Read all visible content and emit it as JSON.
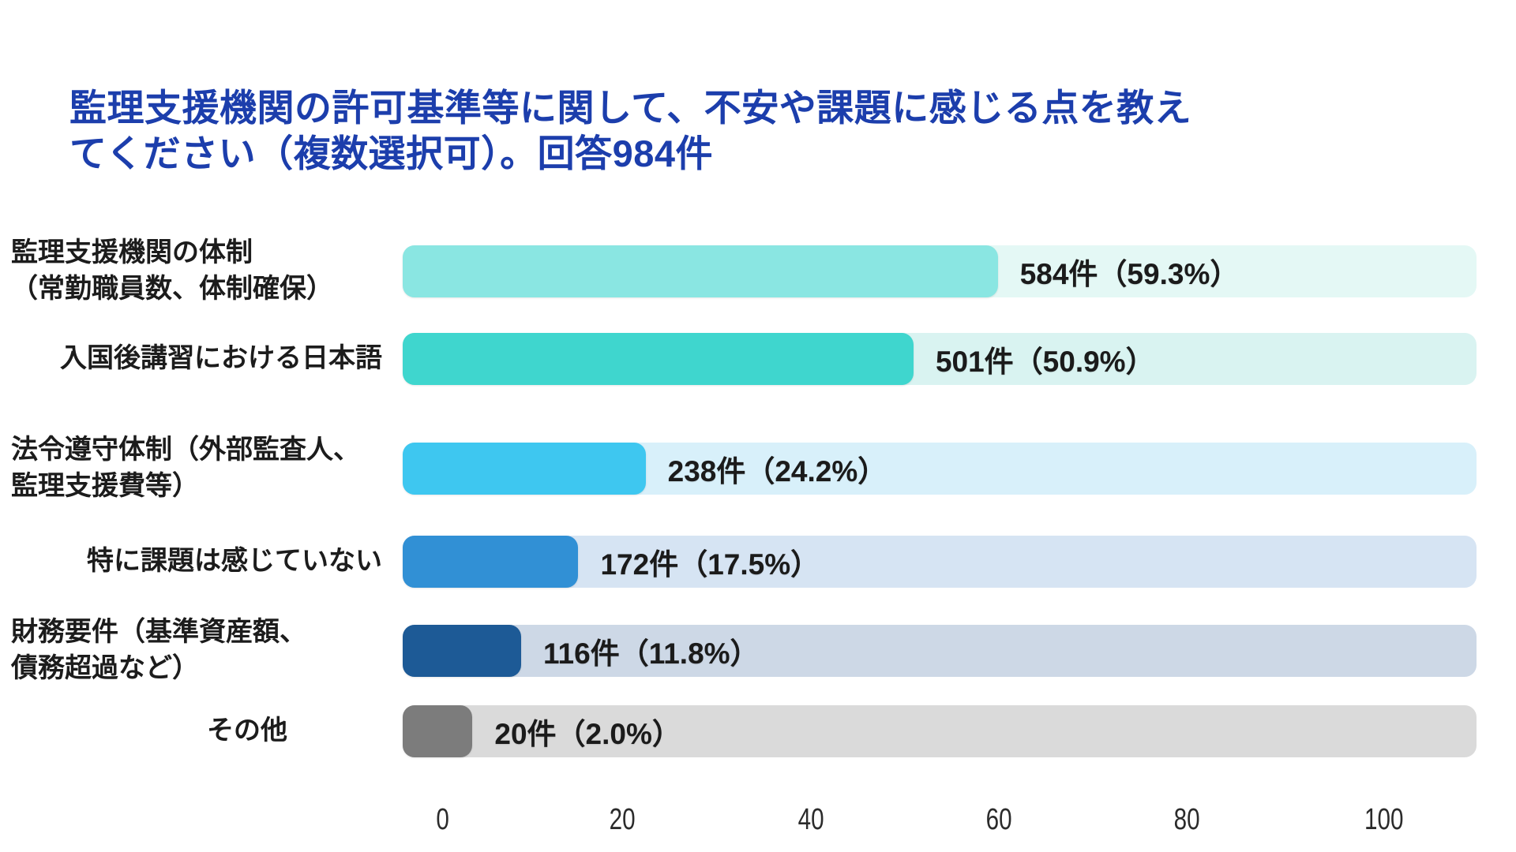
{
  "title": {
    "line1": "監理支援機関の許可基準等に関して、不安や課題に感じる点を教え",
    "line2": "てください（複数選択可）。回答984件"
  },
  "rows": [
    {
      "label_line1": "監理支援機関の体制",
      "label_line2": "（常勤職員数、体制確保）",
      "value_label": "584件（59.3%）",
      "count": 584,
      "pct": 59.3,
      "bar_color": "#8AE6E2",
      "track_color": "#E4F8F5"
    },
    {
      "label_line1": "入国後講習における日本語",
      "label_line2": "",
      "value_label": "501件（50.9%）",
      "count": 501,
      "pct": 50.9,
      "bar_color": "#3FD6CE",
      "track_color": "#D9F3F1"
    },
    {
      "label_line1": "法令遵守体制（外部監査人、",
      "label_line2": "監理支援費等）",
      "value_label": "238件（24.2%）",
      "count": 238,
      "pct": 24.2,
      "bar_color": "#3EC7F0",
      "track_color": "#D8F0FA"
    },
    {
      "label_line1": "特に課題は感じていない",
      "label_line2": "",
      "value_label": "172件（17.5%）",
      "count": 172,
      "pct": 17.5,
      "bar_color": "#3190D5",
      "track_color": "#D6E4F3"
    },
    {
      "label_line1": "財務要件（基準資産額、",
      "label_line2": "債務超過など）",
      "value_label": "116件（11.8%）",
      "count": 116,
      "pct": 11.8,
      "bar_color": "#1D5A96",
      "track_color": "#CDD8E6"
    },
    {
      "label_line1": "その他",
      "label_line2": "",
      "value_label": "20件（2.0%）",
      "count": 20,
      "pct": 2.0,
      "bar_color": "#7C7C7C",
      "track_color": "#DADADA"
    }
  ],
  "axis": {
    "ticks": [
      "0",
      "20",
      "40",
      "60",
      "80",
      "100"
    ]
  },
  "colors": {
    "title_blue": "#1C3EAC",
    "text_dark": "#1B1B1B"
  },
  "chart_data": {
    "type": "bar",
    "orientation": "horizontal",
    "title": "監理支援機関の許可基準等に関して、不安や課題に感じる点を教えてください（複数選択可）。回答984件",
    "total_responses": 984,
    "categories": [
      "監理支援機関の体制（常勤職員数、体制確保）",
      "入国後講習における日本語",
      "法令遵守体制（外部監査人、監理支援費等）",
      "特に課題は感じていない",
      "財務要件（基準資産額、債務超過など）",
      "その他"
    ],
    "values": [
      584,
      501,
      238,
      172,
      116,
      20
    ],
    "percentages": [
      59.3,
      50.9,
      24.2,
      17.5,
      11.8,
      2.0
    ],
    "value_unit": "件",
    "data_labels": [
      "584件（59.3%）",
      "501件（50.9%）",
      "238件（24.2%）",
      "172件（17.5%）",
      "116件（11.8%）",
      "20件（2.0%）"
    ],
    "bar_colors": [
      "#8AE6E2",
      "#3FD6CE",
      "#3EC7F0",
      "#3190D5",
      "#1D5A96",
      "#7C7C7C"
    ],
    "xlabel": "",
    "ylabel": "",
    "xlim": [
      0,
      100
    ],
    "x_ticks": [
      0,
      20,
      40,
      60,
      80,
      100
    ],
    "grid": false,
    "legend": false
  }
}
